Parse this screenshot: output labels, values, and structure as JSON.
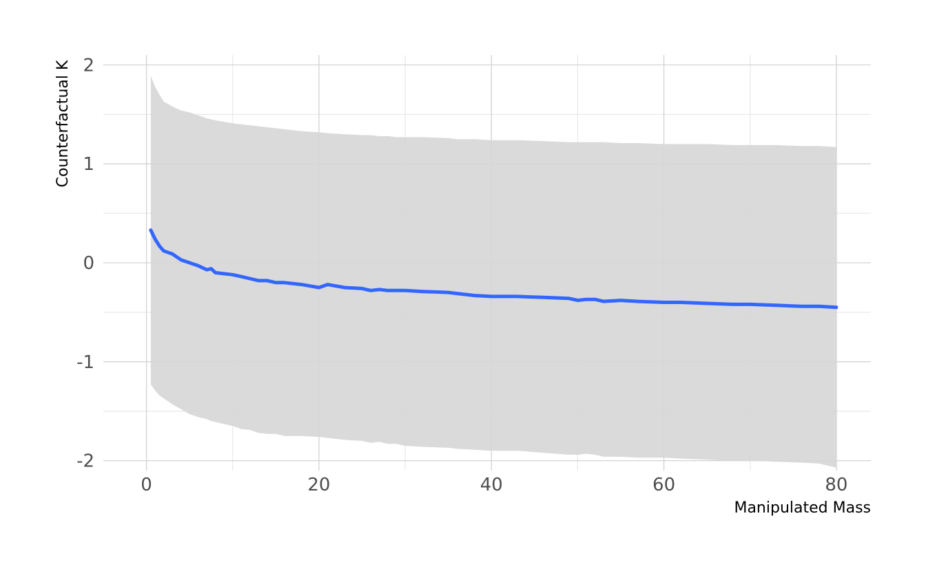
{
  "chart_data": {
    "type": "line",
    "title": "",
    "xlabel": "Manipulated Mass",
    "ylabel": "Counterfactual K",
    "xlim": [
      -5.0,
      84.0
    ],
    "ylim": [
      -2.1,
      2.1
    ],
    "x_ticks": [
      0,
      20,
      40,
      60,
      80
    ],
    "x_tick_labels": [
      "0",
      "20",
      "40",
      "60",
      "80"
    ],
    "x_minor_ticks": [
      10,
      30,
      50,
      70
    ],
    "y_ticks": [
      -2,
      -1,
      0,
      1,
      2
    ],
    "y_tick_labels": [
      "-2",
      "-1",
      "0",
      "1",
      "2"
    ],
    "y_minor_ticks": [
      -1.5,
      -0.5,
      0.5,
      1.5
    ],
    "grid": true,
    "legend": "none",
    "colors": {
      "line": "#3366ff",
      "ribbon": "#d6d6d6",
      "grid_major": "#d2d2d2",
      "grid_minor": "#e6e6e6"
    },
    "series": [
      {
        "x": [
          0.5,
          1,
          1.5,
          2,
          3,
          4,
          5,
          6,
          7,
          7.5,
          8,
          10,
          11,
          12,
          13,
          14,
          15,
          16,
          18,
          20,
          21,
          23,
          25,
          26,
          27,
          28,
          29,
          30,
          32,
          35,
          36,
          38,
          40,
          43,
          46,
          49,
          50,
          51,
          52,
          53,
          55,
          57,
          60,
          62,
          65,
          68,
          70,
          73,
          76,
          78,
          80
        ],
        "y": [
          0.33,
          0.24,
          0.17,
          0.12,
          0.09,
          0.03,
          0.0,
          -0.03,
          -0.07,
          -0.06,
          -0.1,
          -0.12,
          -0.14,
          -0.16,
          -0.18,
          -0.18,
          -0.2,
          -0.2,
          -0.22,
          -0.25,
          -0.22,
          -0.25,
          -0.26,
          -0.28,
          -0.27,
          -0.28,
          -0.28,
          -0.28,
          -0.29,
          -0.3,
          -0.31,
          -0.33,
          -0.34,
          -0.34,
          -0.35,
          -0.36,
          -0.38,
          -0.37,
          -0.37,
          -0.39,
          -0.38,
          -0.39,
          -0.4,
          -0.4,
          -0.41,
          -0.42,
          -0.42,
          -0.43,
          -0.44,
          -0.44,
          -0.45
        ],
        "lower": [
          -1.23,
          -1.29,
          -1.34,
          -1.37,
          -1.43,
          -1.48,
          -1.53,
          -1.56,
          -1.58,
          -1.6,
          -1.61,
          -1.65,
          -1.68,
          -1.69,
          -1.72,
          -1.73,
          -1.73,
          -1.75,
          -1.75,
          -1.76,
          -1.77,
          -1.79,
          -1.8,
          -1.82,
          -1.81,
          -1.83,
          -1.83,
          -1.85,
          -1.86,
          -1.87,
          -1.88,
          -1.89,
          -1.9,
          -1.9,
          -1.92,
          -1.94,
          -1.94,
          -1.93,
          -1.94,
          -1.96,
          -1.96,
          -1.97,
          -1.97,
          -1.98,
          -1.99,
          -2.0,
          -2.0,
          -2.01,
          -2.02,
          -2.03,
          -2.07
        ],
        "upper": [
          1.89,
          1.78,
          1.7,
          1.63,
          1.58,
          1.54,
          1.52,
          1.49,
          1.46,
          1.45,
          1.44,
          1.41,
          1.4,
          1.39,
          1.38,
          1.37,
          1.36,
          1.35,
          1.33,
          1.32,
          1.31,
          1.3,
          1.29,
          1.29,
          1.28,
          1.28,
          1.27,
          1.27,
          1.27,
          1.26,
          1.25,
          1.25,
          1.24,
          1.24,
          1.23,
          1.22,
          1.22,
          1.22,
          1.22,
          1.22,
          1.21,
          1.21,
          1.2,
          1.2,
          1.2,
          1.19,
          1.19,
          1.19,
          1.18,
          1.18,
          1.17
        ]
      }
    ]
  }
}
